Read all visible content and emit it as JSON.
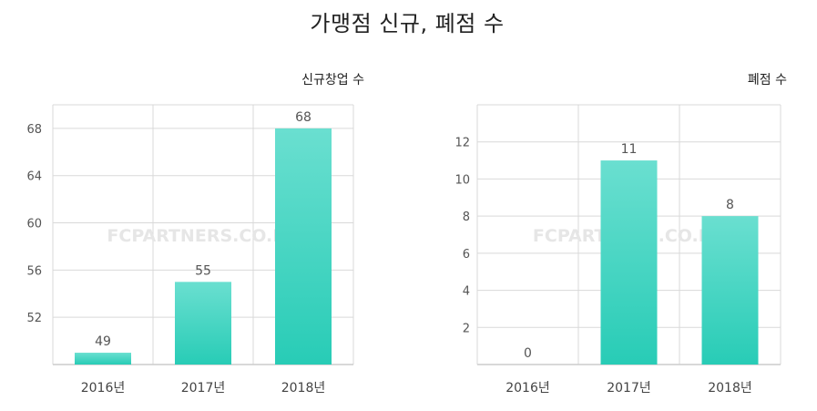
{
  "title": "가맹점 신규, 폐점 수",
  "watermark": "FCPARTNERS.CO.KR",
  "colors": {
    "bar_top": "#6adfd0",
    "bar_bottom": "#28ccb6",
    "grid": "#d9d9d9",
    "axis": "#cccccc"
  },
  "chart_data": [
    {
      "type": "bar",
      "title": "",
      "ylabel": "신규창업 수",
      "xlabel": "",
      "categories": [
        "2016년",
        "2017년",
        "2018년"
      ],
      "values": [
        49,
        55,
        68
      ],
      "yticks": [
        52,
        56,
        60,
        64,
        68
      ],
      "ylim": [
        48,
        70
      ],
      "grid": true
    },
    {
      "type": "bar",
      "title": "",
      "ylabel": "폐점 수",
      "xlabel": "",
      "categories": [
        "2016년",
        "2017년",
        "2018년"
      ],
      "values": [
        0,
        11,
        8
      ],
      "yticks": [
        2,
        4,
        6,
        8,
        10,
        12
      ],
      "ylim": [
        0,
        14
      ],
      "grid": true
    }
  ]
}
